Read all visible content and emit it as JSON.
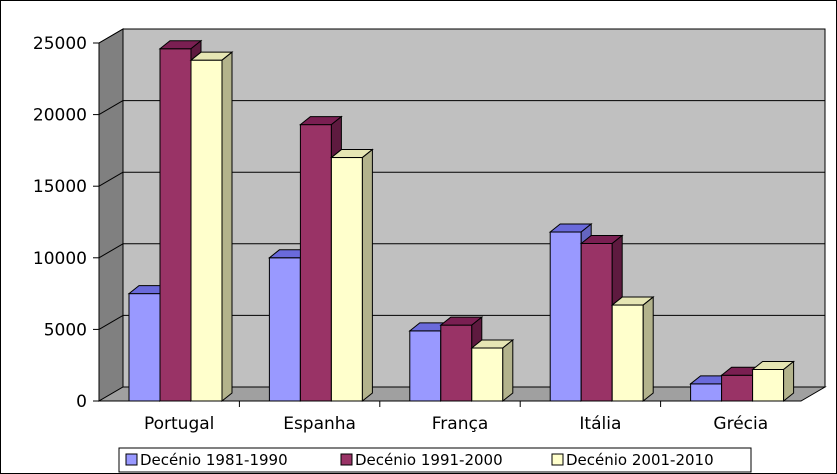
{
  "chart_data": {
    "type": "bar",
    "title": "",
    "xlabel": "",
    "ylabel": "",
    "categories": [
      "Portugal",
      "Espanha",
      "França",
      "Itália",
      "Grécia"
    ],
    "series": [
      {
        "name": "Decénio 1981-1990",
        "values": [
          7500,
          10000,
          4900,
          11800,
          1200
        ],
        "color": "#9999FF",
        "top_color": "#6A6ADB",
        "side_color": "#6565C0"
      },
      {
        "name": "Decénio 1991-2000",
        "values": [
          24600,
          19300,
          5300,
          11000,
          1800
        ],
        "color": "#993366",
        "top_color": "#7A1F52",
        "side_color": "#5E1A3F"
      },
      {
        "name": "Decénio 2001-2010",
        "values": [
          23800,
          17000,
          3700,
          6700,
          2200
        ],
        "color": "#FFFFCC",
        "top_color": "#E6E6B4",
        "side_color": "#B3B38C"
      }
    ],
    "y_ticks": [
      "0",
      "5000",
      "10000",
      "15000",
      "20000",
      "25000"
    ],
    "ylim": [
      0,
      25000
    ],
    "grid": true,
    "plot_area_color": "#C0C0C0",
    "back_wall_side_color": "#808080",
    "legend_position": "bottom"
  }
}
